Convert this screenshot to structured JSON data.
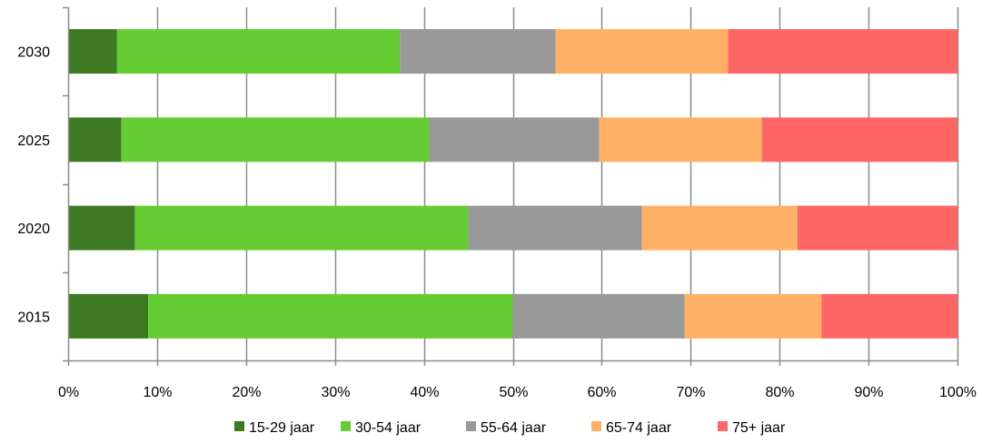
{
  "chart_data": {
    "type": "bar",
    "orientation": "horizontal",
    "stacked": "percent",
    "categories": [
      "2030",
      "2025",
      "2020",
      "2015"
    ],
    "series": [
      {
        "name": "15-29 jaar",
        "color": "#3d7a22",
        "values": [
          5.5,
          6.0,
          7.5,
          9.0
        ]
      },
      {
        "name": "30-54 jaar",
        "color": "#66cc33",
        "values": [
          31.8,
          34.6,
          37.5,
          41.0
        ]
      },
      {
        "name": "55-64 jaar",
        "color": "#999999",
        "values": [
          17.5,
          19.1,
          19.5,
          19.3
        ]
      },
      {
        "name": "65-74 jaar",
        "color": "#ffb066",
        "values": [
          19.4,
          18.3,
          17.5,
          15.4
        ]
      },
      {
        "name": "75+ jaar",
        "color": "#ff6666",
        "values": [
          25.8,
          22.0,
          18.0,
          15.3
        ]
      }
    ],
    "xticks": [
      "0%",
      "10%",
      "20%",
      "30%",
      "40%",
      "50%",
      "60%",
      "70%",
      "80%",
      "90%",
      "100%"
    ],
    "xlim": [
      0,
      100
    ],
    "grid": "vertical",
    "legend": "bottom",
    "title": "",
    "xlabel": "",
    "ylabel": ""
  }
}
